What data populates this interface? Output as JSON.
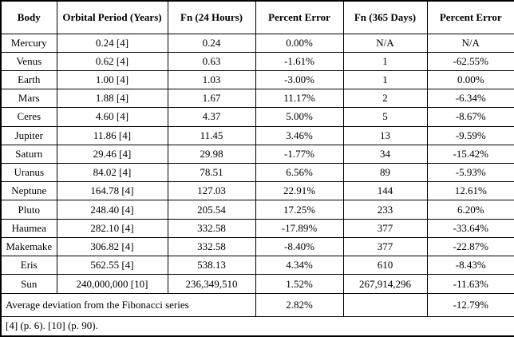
{
  "table": {
    "headers": [
      "Body",
      "Orbital Period (Years)",
      "Fn (24 Hours)",
      "Percent Error",
      "Fn (365 Days)",
      "Percent Error"
    ],
    "rows": [
      [
        "Mercury",
        "0.24 [4]",
        "0.24",
        "0.00%",
        "N/A",
        "N/A"
      ],
      [
        "Venus",
        "0.62 [4]",
        "0.63",
        "-1.61%",
        "1",
        "-62.55%"
      ],
      [
        "Earth",
        "1.00 [4]",
        "1.03",
        "-3.00%",
        "1",
        "0.00%"
      ],
      [
        "Mars",
        "1.88 [4]",
        "1.67",
        "11.17%",
        "2",
        "-6.34%"
      ],
      [
        "Ceres",
        "4.60 [4]",
        "4.37",
        "5.00%",
        "5",
        "-8.67%"
      ],
      [
        "Jupiter",
        "11.86 [4]",
        "11.45",
        "3.46%",
        "13",
        "-9.59%"
      ],
      [
        "Saturn",
        "29.46 [4]",
        "29.98",
        "-1.77%",
        "34",
        "-15.42%"
      ],
      [
        "Uranus",
        "84.02 [4]",
        "78.51",
        "6.56%",
        "89",
        "-5.93%"
      ],
      [
        "Neptune",
        "164.78 [4]",
        "127.03",
        "22.91%",
        "144",
        "12.61%"
      ],
      [
        "Pluto",
        "248.40 [4]",
        "205.54",
        "17.25%",
        "233",
        "6.20%"
      ],
      [
        "Haumea",
        "282.10 [4]",
        "332.58",
        "-17.89%",
        "377",
        "-33.64%"
      ],
      [
        "Makemake",
        "306.82 [4]",
        "332.58",
        "-8.40%",
        "377",
        "-22.87%"
      ],
      [
        "Eris",
        "562.55 [4]",
        "538.13",
        "4.34%",
        "610",
        "-8.43%"
      ],
      [
        "Sun",
        "240,000,000 [10]",
        "236,349,510",
        "1.52%",
        "267,914,296",
        "-11.63%"
      ]
    ],
    "summary_row": {
      "label": "Average deviation from the Fibonacci series",
      "err_24": "2.82%",
      "fn_365": "",
      "err_365": "-12.79%"
    },
    "footnote": "[4] (p. 6). [10] (p. 90).",
    "colors": {
      "border": "#000000",
      "text": "#000000",
      "background": "#ffffff"
    }
  }
}
